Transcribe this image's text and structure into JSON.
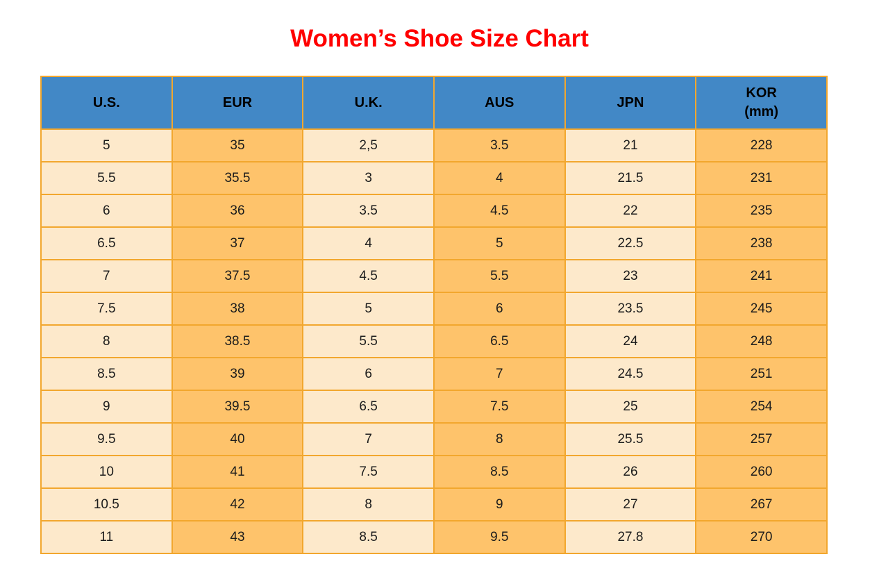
{
  "title": "Women’s Shoe Size Chart",
  "colors": {
    "title": "#ff0000",
    "header_bg": "#4288c6",
    "row_light": "#fde9cb",
    "row_orange": "#fec36b",
    "border": "#f2a72e",
    "cell_text": "#1c1c1c",
    "header_text": "#000000"
  },
  "chart_data": {
    "type": "table",
    "title": "Women’s Shoe Size Chart",
    "columns": [
      "U.S.",
      "EUR",
      "U.K.",
      "AUS",
      "JPN",
      "KOR (mm)"
    ],
    "header_lines": [
      [
        "U.S."
      ],
      [
        "EUR"
      ],
      [
        "U.K."
      ],
      [
        "AUS"
      ],
      [
        "JPN"
      ],
      [
        "KOR",
        "(mm)"
      ]
    ],
    "rows": [
      [
        "5",
        "35",
        "2,5",
        "3.5",
        "21",
        "228"
      ],
      [
        "5.5",
        "35.5",
        "3",
        "4",
        "21.5",
        "231"
      ],
      [
        "6",
        "36",
        "3.5",
        "4.5",
        "22",
        "235"
      ],
      [
        "6.5",
        "37",
        "4",
        "5",
        "22.5",
        "238"
      ],
      [
        "7",
        "37.5",
        "4.5",
        "5.5",
        "23",
        "241"
      ],
      [
        "7.5",
        "38",
        "5",
        "6",
        "23.5",
        "245"
      ],
      [
        "8",
        "38.5",
        "5.5",
        "6.5",
        "24",
        "248"
      ],
      [
        "8.5",
        "39",
        "6",
        "7",
        "24.5",
        "251"
      ],
      [
        "9",
        "39.5",
        "6.5",
        "7.5",
        "25",
        "254"
      ],
      [
        "9.5",
        "40",
        "7",
        "8",
        "25.5",
        "257"
      ],
      [
        "10",
        "41",
        "7.5",
        "8.5",
        "26",
        "260"
      ],
      [
        "10.5",
        "42",
        "8",
        "9",
        "27",
        "267"
      ],
      [
        "11",
        "43",
        "8.5",
        "9.5",
        "27.8",
        "270"
      ]
    ],
    "column_shading": [
      "light",
      "orange",
      "light",
      "orange",
      "light",
      "orange"
    ]
  }
}
